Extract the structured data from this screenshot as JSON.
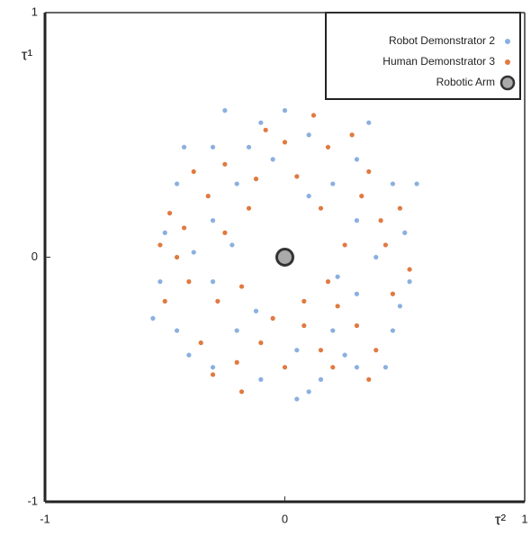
{
  "chart_data": {
    "type": "scatter",
    "xlabel": "τ²",
    "ylabel": "τ¹",
    "xlim": [
      -1,
      1
    ],
    "ylim": [
      -1,
      1
    ],
    "xticks": [
      -1,
      0,
      1
    ],
    "yticks": [
      -1,
      0,
      1
    ],
    "legend": "upper right",
    "series": [
      {
        "name": "Robot Demonstrator 2",
        "color": "#8ab0e0",
        "x": [
          -0.3,
          -0.1,
          0.1,
          0.3,
          0.45,
          0.5,
          0.52,
          0.45,
          0.3,
          0.1,
          -0.1,
          -0.3,
          -0.45,
          -0.52,
          -0.5,
          -0.45,
          -0.2,
          0.2,
          0.3,
          0.3,
          0.2,
          -0.2,
          -0.3,
          -0.3,
          -0.05,
          0.05,
          0.38,
          -0.38,
          -0.25,
          0.35,
          0.15,
          -0.4,
          0.42,
          0.55,
          -0.55,
          0.1,
          -0.12,
          0.22,
          -0.22,
          0.0,
          0.05,
          -0.42,
          0.48,
          -0.15,
          0.25
        ],
        "y": [
          0.45,
          0.55,
          0.5,
          0.4,
          0.3,
          0.1,
          -0.1,
          -0.3,
          -0.45,
          -0.55,
          -0.5,
          -0.45,
          -0.3,
          -0.1,
          0.1,
          0.3,
          0.3,
          0.3,
          0.15,
          -0.15,
          -0.3,
          -0.3,
          -0.1,
          0.15,
          0.4,
          -0.38,
          0.0,
          0.02,
          0.6,
          0.55,
          -0.5,
          -0.4,
          -0.45,
          0.3,
          -0.25,
          0.25,
          -0.22,
          -0.08,
          0.05,
          0.6,
          -0.58,
          0.45,
          -0.2,
          0.45,
          -0.4
        ]
      },
      {
        "name": "Human Demonstrator 3",
        "color": "#e07a40",
        "x": [
          -0.25,
          0.0,
          0.18,
          0.35,
          0.48,
          0.42,
          0.45,
          0.38,
          0.2,
          0.0,
          -0.2,
          -0.35,
          -0.5,
          -0.45,
          -0.48,
          -0.38,
          -0.15,
          0.15,
          0.25,
          0.22,
          0.08,
          -0.1,
          -0.28,
          -0.25,
          0.05,
          -0.05,
          0.32,
          -0.32,
          0.3,
          -0.18,
          0.12,
          -0.08,
          0.28,
          0.52,
          -0.52,
          -0.4,
          0.4,
          0.15,
          -0.3,
          0.35,
          -0.12,
          0.08,
          -0.18,
          0.18,
          -0.42
        ],
        "y": [
          0.38,
          0.47,
          0.45,
          0.35,
          0.2,
          0.05,
          -0.15,
          -0.38,
          -0.45,
          -0.45,
          -0.43,
          -0.35,
          -0.18,
          0.0,
          0.18,
          0.35,
          0.2,
          0.2,
          0.05,
          -0.2,
          -0.28,
          -0.35,
          -0.18,
          0.1,
          0.33,
          -0.25,
          0.25,
          0.25,
          -0.28,
          -0.55,
          0.58,
          0.52,
          0.5,
          -0.05,
          0.05,
          -0.1,
          0.15,
          -0.38,
          -0.48,
          -0.5,
          0.32,
          -0.18,
          -0.12,
          -0.1,
          0.12
        ]
      },
      {
        "name": "Robotic Arm",
        "color": "#aaaaaa",
        "x": [
          0
        ],
        "y": [
          0
        ]
      }
    ]
  }
}
